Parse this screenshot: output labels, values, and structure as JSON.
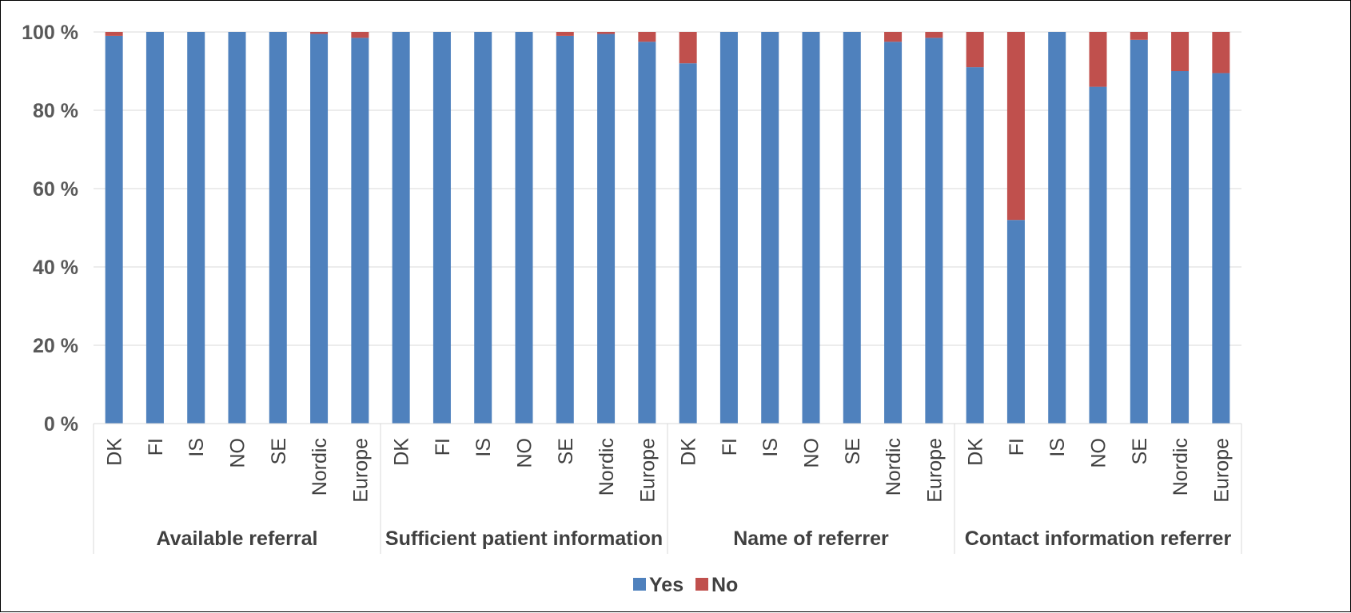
{
  "chart_data": {
    "type": "bar",
    "stacked": true,
    "percent_stacked": true,
    "ylim": [
      0,
      100
    ],
    "yticks": [
      "0 %",
      "20 %",
      "40 %",
      "60 %",
      "80 %",
      "100 %"
    ],
    "grid": true,
    "legend_position": "bottom",
    "groups": [
      {
        "name": "Available referral",
        "categories": [
          "DK",
          "FI",
          "IS",
          "NO",
          "SE",
          "Nordic",
          "Europe"
        ]
      },
      {
        "name": "Sufficient patient information",
        "categories": [
          "DK",
          "FI",
          "IS",
          "NO",
          "SE",
          "Nordic",
          "Europe"
        ]
      },
      {
        "name": "Name of referrer",
        "categories": [
          "DK",
          "FI",
          "IS",
          "NO",
          "SE",
          "Nordic",
          "Europe"
        ]
      },
      {
        "name": "Contact information referrer",
        "categories": [
          "DK",
          "FI",
          "IS",
          "NO",
          "SE",
          "Nordic",
          "Europe"
        ]
      }
    ],
    "series": [
      {
        "name": "Yes",
        "color": "#4F81BD",
        "values": [
          99,
          100,
          100,
          100,
          100,
          99.5,
          98.5,
          100,
          100,
          100,
          100,
          99,
          99.5,
          97.5,
          92,
          100,
          100,
          100,
          100,
          97.5,
          98.5,
          91,
          52,
          100,
          86,
          98,
          90,
          89.5
        ]
      },
      {
        "name": "No",
        "color": "#C0504D",
        "values": [
          1,
          0,
          0,
          0,
          0,
          0.5,
          1.5,
          0,
          0,
          0,
          0,
          1,
          0.5,
          2.5,
          8,
          0,
          0,
          0,
          0,
          2.5,
          1.5,
          9,
          48,
          0,
          14,
          2,
          10,
          10.5
        ]
      }
    ]
  }
}
